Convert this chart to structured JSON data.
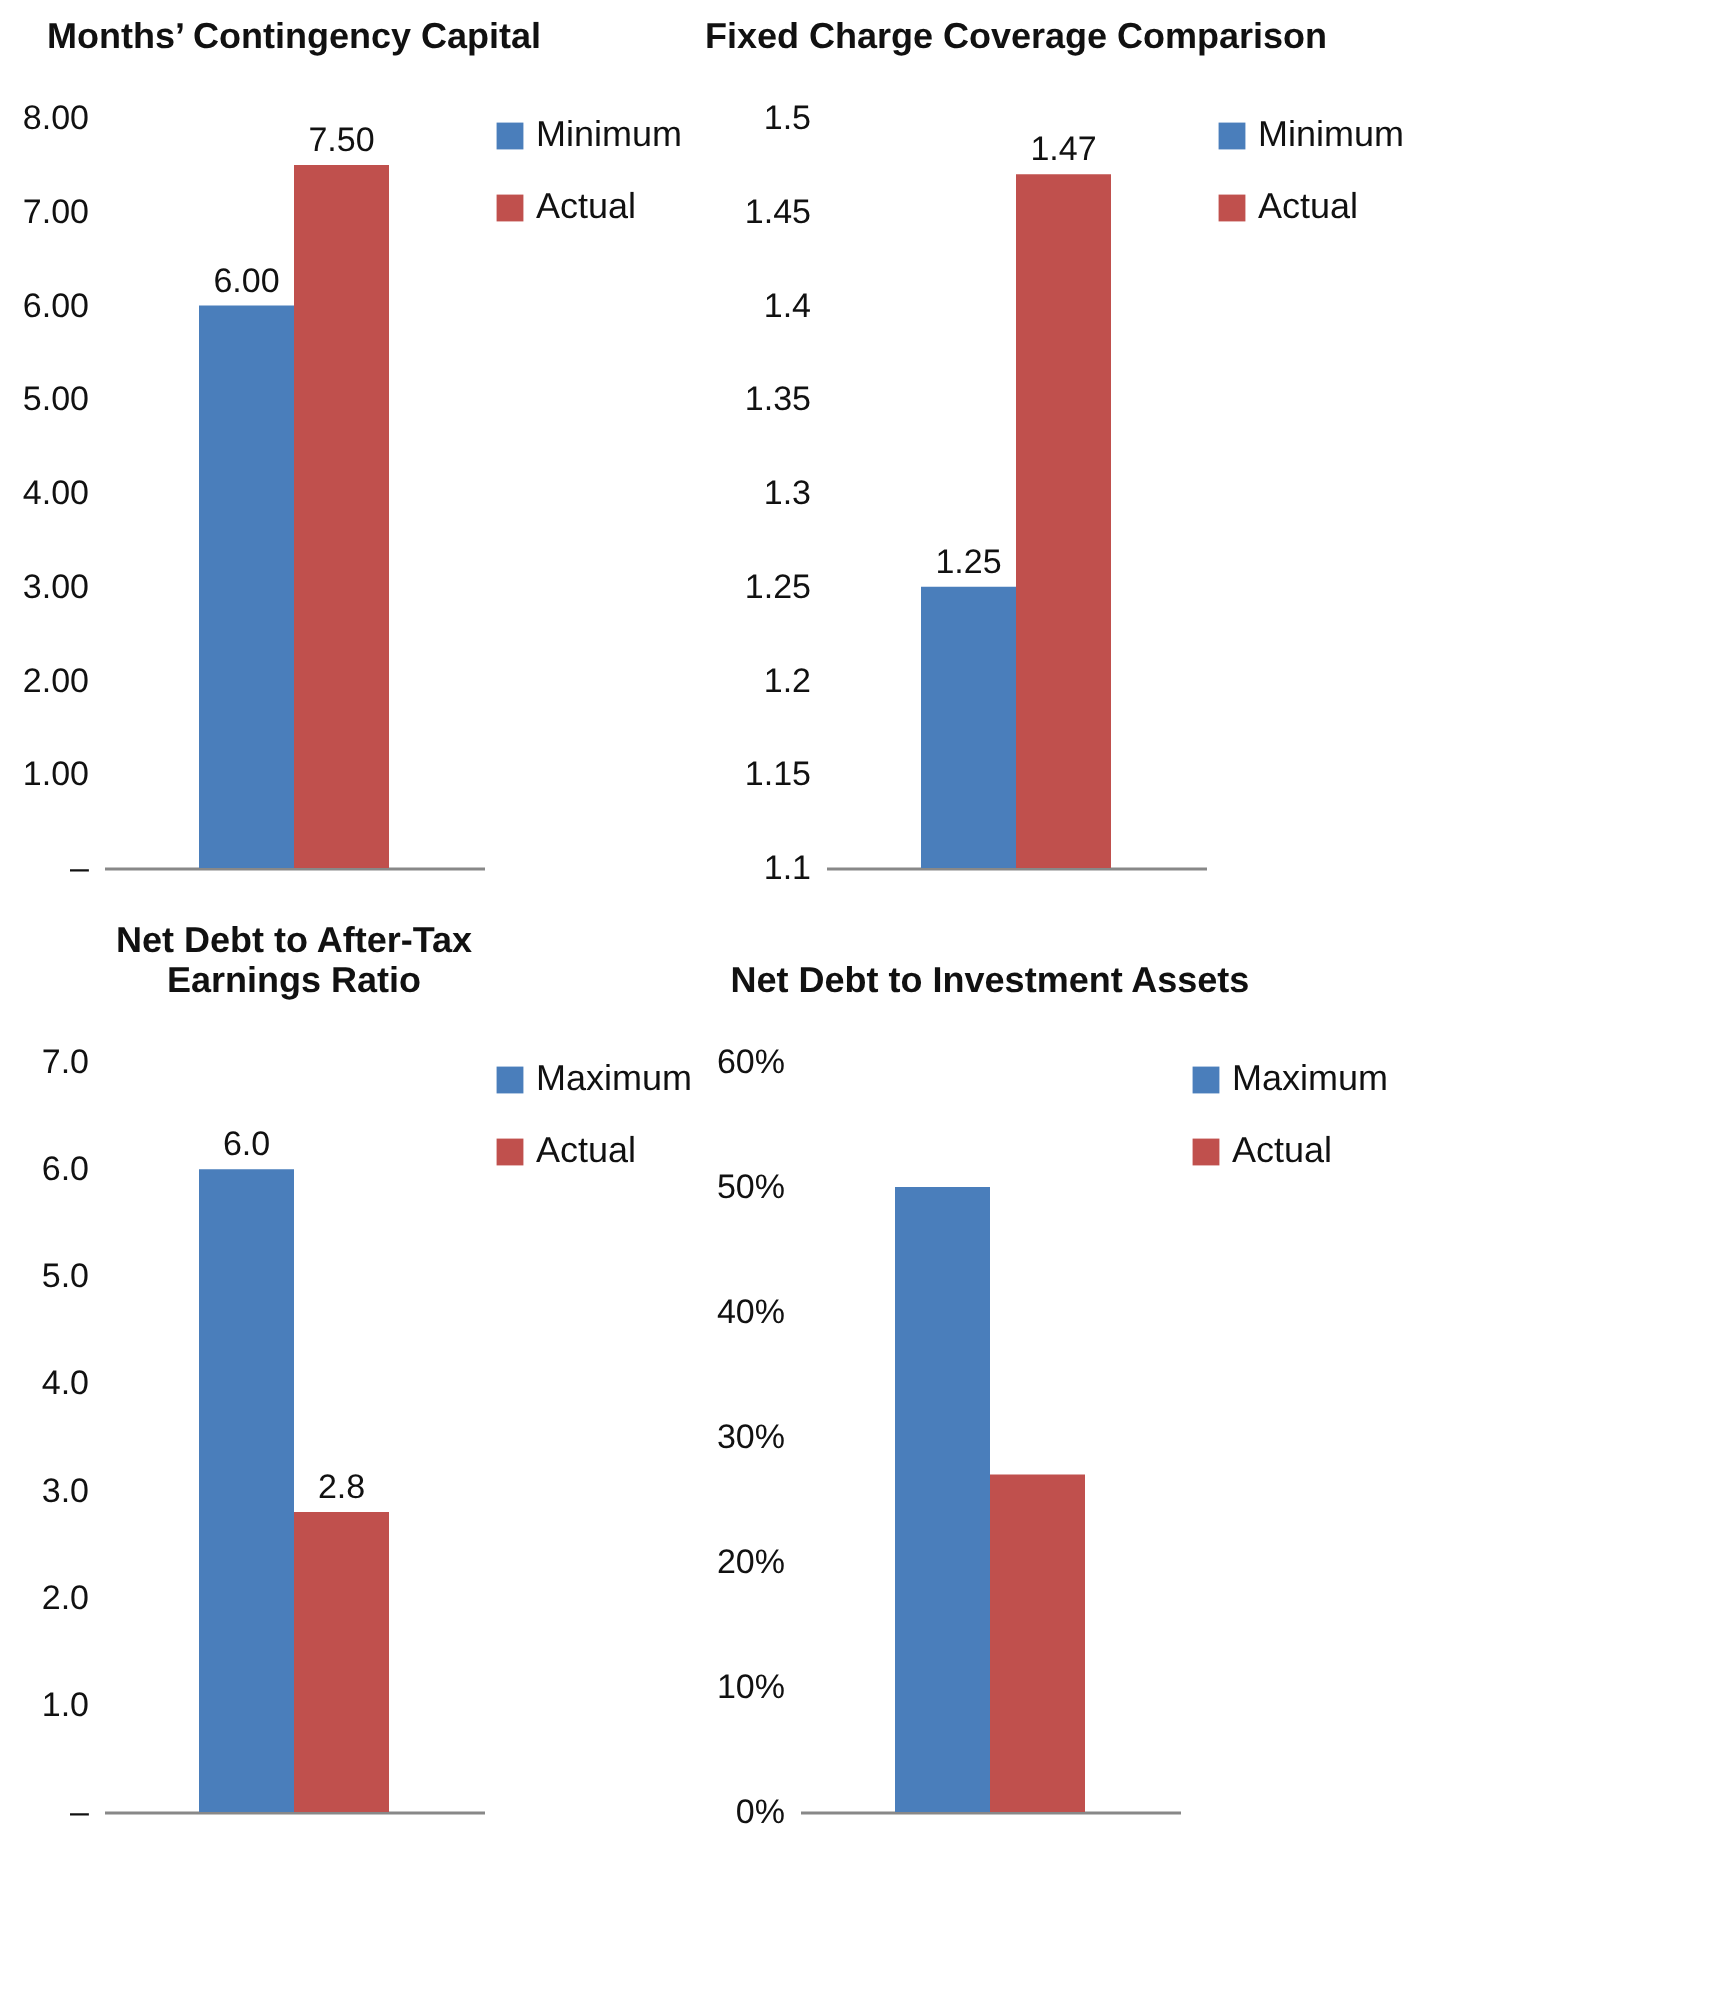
{
  "chart_data": [
    {
      "type": "bar",
      "title": "Months’ Contingency Capital",
      "categories": [
        null
      ],
      "series": [
        {
          "name": "Minimum",
          "color": "#4a7ebb",
          "values": [
            6.0
          ],
          "value_labels": [
            "6.00"
          ]
        },
        {
          "name": "Actual",
          "color": "#c0504d",
          "values": [
            7.5
          ],
          "value_labels": [
            "7.50"
          ]
        }
      ],
      "ylim": [
        0,
        8
      ],
      "yticks": [
        {
          "value": 0,
          "label": "–"
        },
        {
          "value": 1,
          "label": "1.00"
        },
        {
          "value": 2,
          "label": "2.00"
        },
        {
          "value": 3,
          "label": "3.00"
        },
        {
          "value": 4,
          "label": "4.00"
        },
        {
          "value": 5,
          "label": "5.00"
        },
        {
          "value": 6,
          "label": "6.00"
        },
        {
          "value": 7,
          "label": "7.00"
        },
        {
          "value": 8,
          "label": "8.00"
        }
      ],
      "grid": false,
      "legend": "right"
    },
    {
      "type": "bar",
      "title": "Fixed Charge Coverage Comparison",
      "categories": [
        null
      ],
      "series": [
        {
          "name": "Minimum",
          "color": "#4a7ebb",
          "values": [
            1.25
          ]
        },
        {
          "name": "Actual",
          "color": "#c0504d",
          "values": [
            1.47
          ]
        }
      ],
      "ylim": [
        1.1,
        1.5
      ],
      "yticks": [
        1.1,
        1.15,
        1.2,
        1.25,
        1.3,
        1.35,
        1.4,
        1.45,
        1.5
      ],
      "data_labels": true,
      "grid": false,
      "legend": "right"
    },
    {
      "type": "bar",
      "title": "Net Debt to After-Tax Earnings Ratio",
      "categories": [
        null
      ],
      "series": [
        {
          "name": "Maximum",
          "color": "#4a7ebb",
          "values": [
            6.0
          ],
          "value_labels": [
            "6.0"
          ]
        },
        {
          "name": "Actual",
          "color": "#c0504d",
          "values": [
            2.8
          ],
          "value_labels": [
            "2.8"
          ]
        }
      ],
      "ylim": [
        0,
        7
      ],
      "yticks": [
        {
          "value": 0,
          "label": "–"
        },
        {
          "value": 1,
          "label": "1.0"
        },
        {
          "value": 2,
          "label": "2.0"
        },
        {
          "value": 3,
          "label": "3.0"
        },
        {
          "value": 4,
          "label": "4.0"
        },
        {
          "value": 5,
          "label": "5.0"
        },
        {
          "value": 6,
          "label": "6.0"
        },
        {
          "value": 7,
          "label": "7.0"
        }
      ],
      "grid": false,
      "legend": "right"
    },
    {
      "type": "bar",
      "title": "Net Debt to Investment Assets",
      "categories": [
        null
      ],
      "series": [
        {
          "name": "Maximum",
          "color": "#4a7ebb",
          "values": [
            50
          ]
        },
        {
          "name": "Actual",
          "color": "#c0504d",
          "values": [
            27
          ]
        }
      ],
      "ylim": [
        0,
        60
      ],
      "yticks": [
        {
          "value": 0,
          "label": "0%"
        },
        {
          "value": 10,
          "label": "10%"
        },
        {
          "value": 20,
          "label": "20%"
        },
        {
          "value": 30,
          "label": "30%"
        },
        {
          "value": 40,
          "label": "40%"
        },
        {
          "value": 50,
          "label": "50%"
        },
        {
          "value": 60,
          "label": "60%"
        }
      ],
      "grid": false,
      "legend": "right"
    }
  ]
}
